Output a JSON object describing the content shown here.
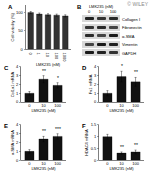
{
  "chart_data": [
    {
      "type": "bar",
      "panel": "A",
      "categories": [
        "0",
        "1",
        "10",
        "100",
        "1000"
      ],
      "values": [
        100,
        96,
        94,
        93,
        91
      ],
      "errors": [
        3,
        3,
        3,
        3,
        3
      ],
      "color": "#333333",
      "x_label": "LMK235 (nM)",
      "y_label": "Cell viability (%)",
      "ylim": [
        0,
        120
      ],
      "yticks": [
        0,
        50,
        100
      ],
      "annotations": []
    },
    {
      "type": "bar",
      "panel": "C",
      "categories": [
        "0",
        "10",
        "100"
      ],
      "values": [
        1,
        2.6,
        1.9
      ],
      "errors": [
        0.2,
        0.4,
        0.3
      ],
      "color": "#111111",
      "x_label": "LMK235 (nM)",
      "y_label": "Col1a1 mRNA",
      "ylim": [
        0,
        4
      ],
      "yticks": [
        0,
        1,
        2,
        3,
        4
      ],
      "annotations": [
        {
          "category": "10",
          "text": "**"
        },
        {
          "category": "100",
          "text": "*"
        }
      ]
    },
    {
      "type": "bar",
      "panel": "D",
      "categories": [
        "0",
        "10",
        "100"
      ],
      "values": [
        1,
        2.9,
        2.3
      ],
      "errors": [
        0.3,
        0.6,
        0.5
      ],
      "color": "#111111",
      "x_label": "LMK235 (nM)",
      "y_label": "Fn1 mRNA",
      "ylim": [
        0,
        4
      ],
      "yticks": [
        0,
        1,
        2,
        3,
        4
      ],
      "annotations": [
        {
          "category": "10",
          "text": "*"
        },
        {
          "category": "100",
          "text": "**"
        }
      ]
    },
    {
      "type": "bar",
      "panel": "E",
      "categories": [
        "0",
        "10",
        "100"
      ],
      "values": [
        1,
        2.4,
        2.7
      ],
      "errors": [
        0.2,
        0.3,
        0.3
      ],
      "color": "#111111",
      "x_label": "LMK235 (nM)",
      "y_label": "α-SMA mRNA",
      "ylim": [
        0,
        4
      ],
      "yticks": [
        0,
        1,
        2,
        3,
        4
      ],
      "annotations": [
        {
          "category": "10",
          "text": "**"
        },
        {
          "category": "100",
          "text": "***"
        }
      ]
    },
    {
      "type": "bar",
      "panel": "F",
      "categories": [
        "0",
        "10",
        "100"
      ],
      "values": [
        1,
        0.3,
        0.35
      ],
      "errors": [
        0.1,
        0.05,
        0.08
      ],
      "color": "#111111",
      "x_label": "LMK235 (nM)",
      "y_label": "HDAC4 mRNA",
      "ylim": [
        0,
        1.5
      ],
      "yticks": [
        0,
        0.5,
        1,
        1.5
      ],
      "annotations": [
        {
          "category": "10",
          "text": "**"
        },
        {
          "category": "100",
          "text": "**"
        }
      ]
    }
  ],
  "blot": {
    "panel": "B",
    "header": "LMK235 (nM)",
    "lanes": [
      "0",
      "10",
      "100"
    ],
    "rows": [
      "Collagen I",
      "Fibronectin",
      "α-SMA",
      "Vimentin",
      "GAPDH"
    ]
  },
  "watermark": "© WILEY"
}
